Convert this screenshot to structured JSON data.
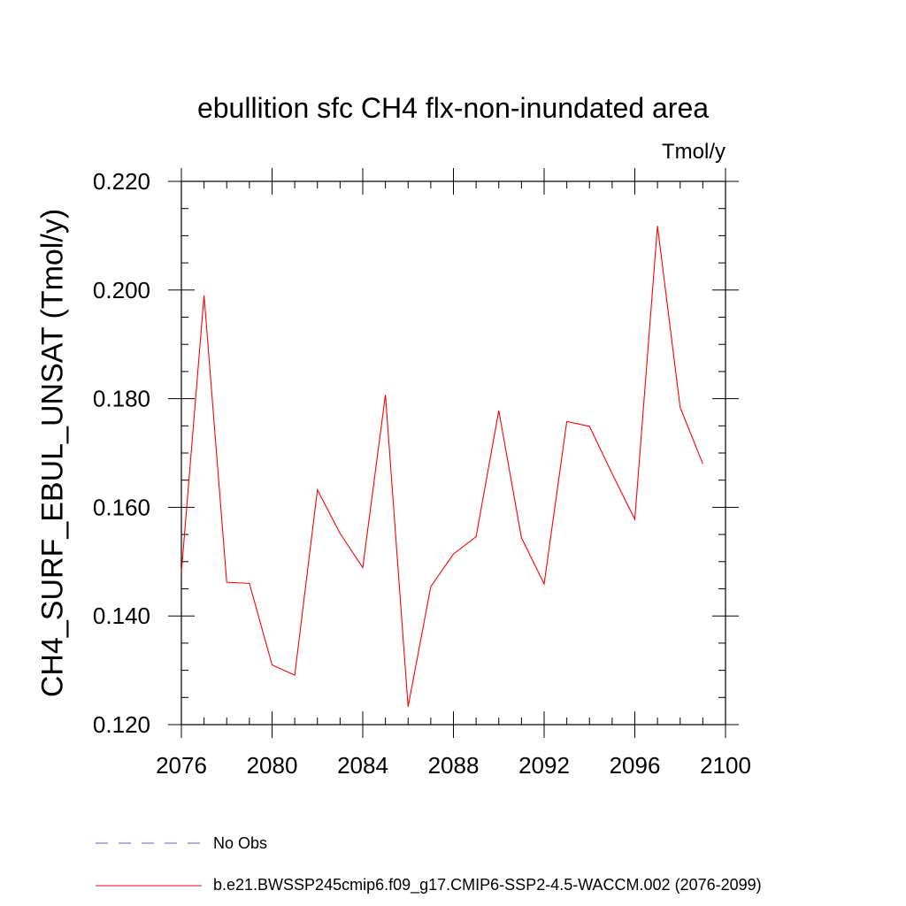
{
  "chart_data": {
    "type": "line",
    "title": "ebullition sfc CH4 flx-non-inundated area",
    "units_label": "Tmol/y",
    "xlabel": "",
    "ylabel": "CH4_SURF_EBUL_UNSAT  (Tmol/y)",
    "xlim": [
      2076,
      2100
    ],
    "ylim": [
      0.12,
      0.22
    ],
    "x_ticks": [
      "2076",
      "2080",
      "2084",
      "2088",
      "2092",
      "2096",
      "2100"
    ],
    "y_ticks": [
      "0.120",
      "0.140",
      "0.160",
      "0.180",
      "0.200",
      "0.220"
    ],
    "grid": false,
    "legend_placement": "bottom",
    "series": [
      {
        "name": "b.e21.BWSSP245cmip6.f09_g17.CMIP6-SSP2-4.5-WACCM.002 (2076-2099)",
        "color": "#ff0000",
        "style": "solid",
        "x": [
          2076,
          2077,
          2078,
          2079,
          2080,
          2081,
          2082,
          2083,
          2084,
          2085,
          2086,
          2087,
          2088,
          2089,
          2090,
          2091,
          2092,
          2093,
          2094,
          2095,
          2096,
          2097,
          2098,
          2099
        ],
        "values": [
          0.148,
          0.199,
          0.1462,
          0.146,
          0.131,
          0.1291,
          0.1632,
          0.1552,
          0.1489,
          0.1807,
          0.1233,
          0.1454,
          0.1514,
          0.1546,
          0.1778,
          0.1544,
          0.1459,
          0.1758,
          0.1749,
          0.1662,
          0.1578,
          0.2118,
          0.1784,
          0.168
        ]
      },
      {
        "name": "No Obs",
        "color": "#6a5acd",
        "style": "dashed",
        "x": [],
        "values": []
      }
    ]
  }
}
